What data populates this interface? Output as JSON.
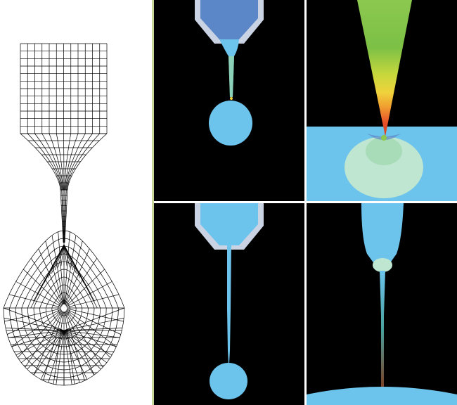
{
  "figure": {
    "colors": {
      "background_panel": "#000000",
      "fluid": "#6cc4ec",
      "nozzle_fluid": "#5b86c8",
      "nozzle_wall": "#c9d3e4",
      "mesh_line": "#000000",
      "divider": "#c8d69a",
      "contour_high": "#e8502a",
      "contour_mid": "#f0d23c",
      "contour_low": "#8cc850",
      "contour_pale": "#bfe6d0"
    },
    "panels": [
      {
        "id": "mesh",
        "kind": "finite-element-mesh"
      },
      {
        "id": "top-left",
        "kind": "simulation-drop-with-thin-neck"
      },
      {
        "id": "top-right",
        "kind": "simulation-zoom-contour"
      },
      {
        "id": "bottom-left",
        "kind": "simulation-long-filament"
      },
      {
        "id": "bottom-right",
        "kind": "simulation-zoom-filament"
      }
    ]
  }
}
